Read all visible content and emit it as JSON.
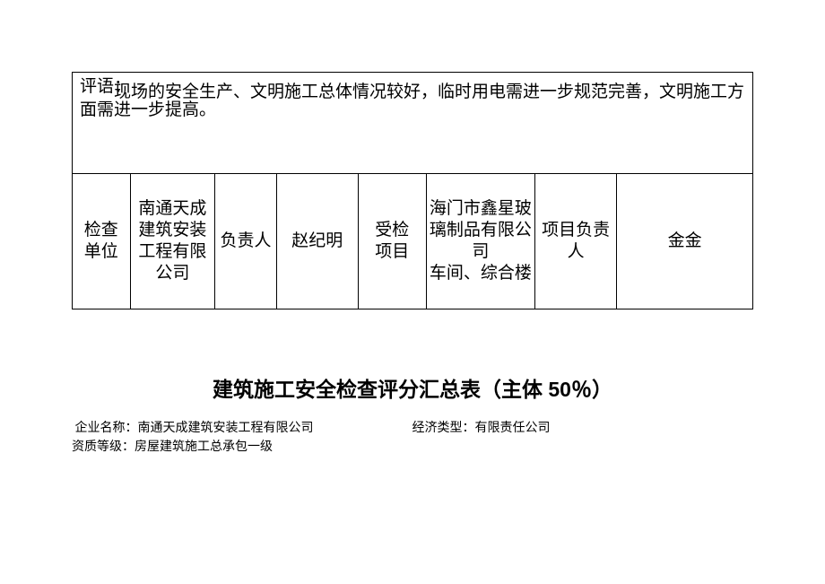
{
  "comment": {
    "label": "评语：",
    "text": "现场的安全生产、文明施工总体情况较好，临时用电需进一步规范完善，文明施工方面需进一步提高。"
  },
  "info_row": {
    "h1": "检查单位",
    "v1": "南通天成建筑安装工程有限公司",
    "h2": "负责人",
    "v2": "赵纪明",
    "h3": "受检项目",
    "v3": "海门市鑫星玻璃制品有限公司\n车间、综合楼",
    "h4": "项目负责人",
    "v4": "金金"
  },
  "title": "建筑施工安全检查评分汇总表（主体 50％）",
  "meta": {
    "company_label": "企业名称：",
    "company_value": "南通天成建筑安装工程有限公司",
    "econ_label": "经济类型：",
    "econ_value": "有限责任公司",
    "qual_label": "资质等级：",
    "qual_value": "房屋建筑施工总承包一级"
  },
  "col_widths": {
    "c1": "8.5%",
    "c2": "12.5%",
    "c3": "9%",
    "c4": "12%",
    "c5": "10%",
    "c6": "16%",
    "c7": "12%",
    "c8": "20%"
  }
}
